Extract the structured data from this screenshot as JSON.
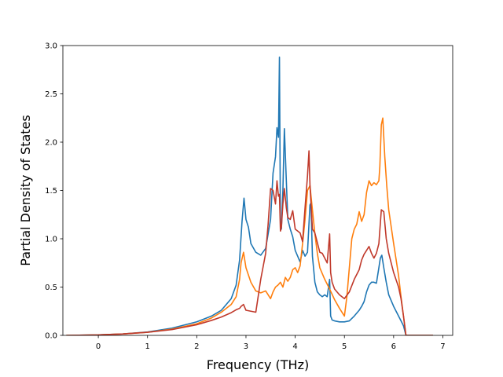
{
  "chart_data": {
    "type": "line",
    "title": "",
    "xlabel": "Frequency (THz)",
    "ylabel": "Partial Density of States",
    "xlim": [
      -0.72,
      7.2
    ],
    "ylim": [
      0.0,
      3.0
    ],
    "xticks": [
      0,
      1,
      2,
      3,
      4,
      5,
      6,
      7
    ],
    "yticks": [
      0.0,
      0.5,
      1.0,
      1.5,
      2.0,
      2.5,
      3.0
    ],
    "xtick_labels": [
      "0",
      "1",
      "2",
      "3",
      "4",
      "5",
      "6",
      "7"
    ],
    "ytick_labels": [
      "0.0",
      "0.5",
      "1.0",
      "1.5",
      "2.0",
      "2.5",
      "3.0"
    ],
    "grid": false,
    "legend": false,
    "series": [
      {
        "color": "#1f77b4",
        "x": [
          -0.65,
          0.0,
          0.5,
          1.0,
          1.5,
          2.0,
          2.3,
          2.5,
          2.7,
          2.8,
          2.87,
          2.92,
          2.96,
          3.0,
          3.05,
          3.1,
          3.2,
          3.3,
          3.4,
          3.45,
          3.5,
          3.55,
          3.6,
          3.63,
          3.66,
          3.68,
          3.7,
          3.72,
          3.75,
          3.78,
          3.82,
          3.85,
          3.9,
          3.95,
          4.0,
          4.05,
          4.1,
          4.15,
          4.2,
          4.25,
          4.3,
          4.32,
          4.35,
          4.4,
          4.45,
          4.5,
          4.55,
          4.6,
          4.65,
          4.7,
          4.72,
          4.75,
          4.8,
          4.9,
          5.0,
          5.1,
          5.2,
          5.3,
          5.35,
          5.4,
          5.45,
          5.5,
          5.55,
          5.6,
          5.65,
          5.7,
          5.73,
          5.76,
          5.8,
          5.85,
          5.9,
          6.0,
          6.1,
          6.15,
          6.2,
          6.25,
          6.8
        ],
        "y": [
          0,
          0.005,
          0.015,
          0.035,
          0.075,
          0.14,
          0.2,
          0.26,
          0.38,
          0.52,
          0.78,
          1.18,
          1.42,
          1.2,
          1.12,
          0.95,
          0.86,
          0.83,
          0.9,
          1.05,
          1.2,
          1.68,
          1.85,
          2.15,
          2.05,
          2.88,
          1.15,
          1.1,
          1.5,
          2.14,
          1.6,
          1.2,
          1.1,
          1.02,
          0.88,
          0.82,
          0.76,
          0.88,
          0.82,
          0.86,
          1.35,
          1.37,
          0.82,
          0.55,
          0.45,
          0.42,
          0.4,
          0.42,
          0.4,
          0.58,
          0.2,
          0.16,
          0.15,
          0.14,
          0.14,
          0.15,
          0.2,
          0.26,
          0.3,
          0.35,
          0.45,
          0.52,
          0.55,
          0.55,
          0.54,
          0.7,
          0.8,
          0.83,
          0.7,
          0.55,
          0.42,
          0.3,
          0.2,
          0.15,
          0.1,
          0.0,
          0.0
        ]
      },
      {
        "color": "#ff7f0e",
        "x": [
          -0.65,
          0.0,
          0.5,
          1.0,
          1.5,
          2.0,
          2.3,
          2.5,
          2.7,
          2.8,
          2.87,
          2.9,
          2.95,
          3.0,
          3.1,
          3.2,
          3.3,
          3.4,
          3.45,
          3.5,
          3.55,
          3.6,
          3.65,
          3.7,
          3.75,
          3.8,
          3.85,
          3.9,
          3.95,
          4.0,
          4.05,
          4.1,
          4.15,
          4.2,
          4.25,
          4.3,
          4.35,
          4.4,
          4.45,
          4.5,
          4.6,
          4.7,
          4.8,
          4.9,
          5.0,
          5.05,
          5.1,
          5.15,
          5.2,
          5.25,
          5.3,
          5.35,
          5.4,
          5.45,
          5.5,
          5.55,
          5.6,
          5.65,
          5.7,
          5.72,
          5.75,
          5.78,
          5.82,
          5.86,
          5.9,
          6.0,
          6.1,
          6.15,
          6.2,
          6.25,
          6.8
        ],
        "y": [
          0,
          0.005,
          0.015,
          0.032,
          0.065,
          0.12,
          0.18,
          0.24,
          0.32,
          0.4,
          0.58,
          0.75,
          0.86,
          0.7,
          0.55,
          0.46,
          0.44,
          0.46,
          0.42,
          0.38,
          0.45,
          0.5,
          0.52,
          0.55,
          0.5,
          0.6,
          0.56,
          0.6,
          0.68,
          0.7,
          0.65,
          0.72,
          0.95,
          1.2,
          1.5,
          1.55,
          1.3,
          1.05,
          0.85,
          0.7,
          0.58,
          0.48,
          0.37,
          0.28,
          0.2,
          0.4,
          0.7,
          1.0,
          1.1,
          1.15,
          1.28,
          1.18,
          1.25,
          1.48,
          1.6,
          1.55,
          1.58,
          1.56,
          1.6,
          1.75,
          2.18,
          2.25,
          1.85,
          1.55,
          1.3,
          0.95,
          0.62,
          0.4,
          0.2,
          0.0,
          0.0
        ]
      },
      {
        "color": "#c0392b",
        "x": [
          -0.65,
          0.0,
          0.5,
          1.0,
          1.5,
          2.0,
          2.3,
          2.5,
          2.7,
          2.8,
          2.87,
          2.9,
          2.95,
          3.0,
          3.1,
          3.2,
          3.3,
          3.4,
          3.45,
          3.5,
          3.55,
          3.6,
          3.63,
          3.66,
          3.68,
          3.7,
          3.72,
          3.75,
          3.78,
          3.82,
          3.85,
          3.9,
          3.95,
          4.0,
          4.05,
          4.1,
          4.15,
          4.2,
          4.25,
          4.28,
          4.3,
          4.35,
          4.4,
          4.45,
          4.5,
          4.55,
          4.6,
          4.65,
          4.7,
          4.72,
          4.75,
          4.8,
          4.9,
          5.0,
          5.1,
          5.2,
          5.3,
          5.35,
          5.4,
          5.45,
          5.5,
          5.55,
          5.6,
          5.65,
          5.7,
          5.75,
          5.8,
          5.85,
          5.9,
          6.0,
          6.1,
          6.15,
          6.2,
          6.25,
          6.8
        ],
        "y": [
          0,
          0.005,
          0.015,
          0.032,
          0.06,
          0.11,
          0.155,
          0.19,
          0.235,
          0.265,
          0.28,
          0.3,
          0.32,
          0.26,
          0.25,
          0.24,
          0.58,
          0.85,
          1.15,
          1.52,
          1.5,
          1.36,
          1.6,
          1.44,
          1.46,
          1.08,
          1.12,
          1.36,
          1.52,
          1.32,
          1.22,
          1.2,
          1.29,
          1.1,
          1.08,
          1.06,
          0.97,
          1.32,
          1.65,
          1.91,
          1.56,
          1.1,
          1.06,
          0.96,
          0.86,
          0.85,
          0.8,
          0.75,
          1.05,
          0.65,
          0.55,
          0.48,
          0.42,
          0.38,
          0.45,
          0.58,
          0.68,
          0.78,
          0.84,
          0.88,
          0.92,
          0.85,
          0.8,
          0.85,
          0.95,
          1.3,
          1.28,
          1.0,
          0.85,
          0.65,
          0.5,
          0.38,
          0.2,
          0.0,
          0.0
        ]
      }
    ]
  }
}
